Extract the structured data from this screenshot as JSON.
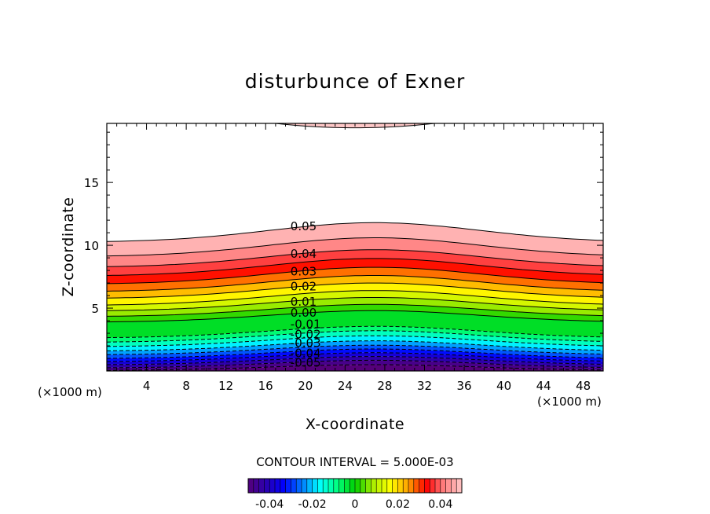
{
  "chart_data": {
    "type": "contour",
    "title": "disturbunce of Exner",
    "xlabel": "X-coordinate",
    "ylabel": "Z-coordinate",
    "x_unit": "(×1000 m)",
    "y_unit": "(×1000 m)",
    "xlim": [
      0,
      50
    ],
    "ylim": [
      0,
      19.7
    ],
    "x_ticks": [
      4,
      8,
      12,
      16,
      20,
      24,
      28,
      32,
      36,
      40,
      44,
      48
    ],
    "y_ticks": [
      5,
      10,
      15
    ],
    "contour_interval_text": "CONTOUR INTERVAL = 5.000E-03",
    "contour_interval": 0.005,
    "level_min": -0.05,
    "level_max": 0.05,
    "crest_x": 27,
    "contour_heights": [
      {
        "level": -0.05,
        "edge_z": 0.05,
        "crest_z": 0.5
      },
      {
        "level": -0.045,
        "edge_z": 0.25,
        "crest_z": 0.85
      },
      {
        "level": -0.04,
        "edge_z": 0.5,
        "crest_z": 1.15
      },
      {
        "level": -0.035,
        "edge_z": 0.75,
        "crest_z": 1.45
      },
      {
        "level": -0.03,
        "edge_z": 1.0,
        "crest_z": 1.75
      },
      {
        "level": -0.025,
        "edge_z": 1.3,
        "crest_z": 2.05
      },
      {
        "level": -0.02,
        "edge_z": 1.6,
        "crest_z": 2.4
      },
      {
        "level": -0.015,
        "edge_z": 1.95,
        "crest_z": 2.8
      },
      {
        "level": -0.01,
        "edge_z": 2.3,
        "crest_z": 3.2
      },
      {
        "level": -0.005,
        "edge_z": 2.65,
        "crest_z": 3.55
      },
      {
        "level": 0.0,
        "edge_z": 3.9,
        "crest_z": 4.8
      },
      {
        "level": 0.005,
        "edge_z": 4.35,
        "crest_z": 5.3
      },
      {
        "level": 0.01,
        "edge_z": 4.8,
        "crest_z": 5.85
      },
      {
        "level": 0.015,
        "edge_z": 5.25,
        "crest_z": 6.4
      },
      {
        "level": 0.02,
        "edge_z": 5.8,
        "crest_z": 7.0
      },
      {
        "level": 0.025,
        "edge_z": 6.35,
        "crest_z": 7.6
      },
      {
        "level": 0.03,
        "edge_z": 6.95,
        "crest_z": 8.25
      },
      {
        "level": 0.035,
        "edge_z": 7.6,
        "crest_z": 8.95
      },
      {
        "level": 0.04,
        "edge_z": 8.3,
        "crest_z": 9.65
      },
      {
        "level": 0.045,
        "edge_z": 9.15,
        "crest_z": 10.6
      },
      {
        "level": 0.05,
        "edge_z": 10.3,
        "crest_z": 11.8
      }
    ],
    "top_cap": {
      "x_start": 17,
      "x_end": 33,
      "z_min": 19.35
    },
    "contour_labels": [
      {
        "text": "0.05",
        "x": 18.5,
        "z": 11.2
      },
      {
        "text": "0.04",
        "x": 18.5,
        "z": 9.0
      },
      {
        "text": "0.03",
        "x": 18.5,
        "z": 7.6
      },
      {
        "text": "0.02",
        "x": 18.5,
        "z": 6.4
      },
      {
        "text": "0.01",
        "x": 18.5,
        "z": 5.2
      },
      {
        "text": "0.00",
        "x": 18.5,
        "z": 4.3
      },
      {
        "text": "-0.01",
        "x": 18.5,
        "z": 3.4
      },
      {
        "text": "-0.02",
        "x": 18.5,
        "z": 2.6
      },
      {
        "text": "-0.03",
        "x": 18.5,
        "z": 1.9
      },
      {
        "text": "-0.04",
        "x": 18.5,
        "z": 1.1
      },
      {
        "text": "-0.05",
        "x": 18.5,
        "z": 0.35
      }
    ],
    "colorbar_ticks": [
      {
        "text": "-0.04",
        "value": -0.04
      },
      {
        "text": "-0.02",
        "value": -0.02
      },
      {
        "text": "0",
        "value": 0
      },
      {
        "text": "0.02",
        "value": 0.02
      },
      {
        "text": "0.04",
        "value": 0.04
      }
    ],
    "colormap": [
      "#55007a",
      "#2a00b0",
      "#0000ff",
      "#0078ff",
      "#00ffff",
      "#00ff80",
      "#00d000",
      "#aaee00",
      "#ffff00",
      "#ffa000",
      "#ff0000",
      "#ff8080",
      "#ffc8c8"
    ],
    "grid": false,
    "legend": "colorbar-bottom"
  }
}
